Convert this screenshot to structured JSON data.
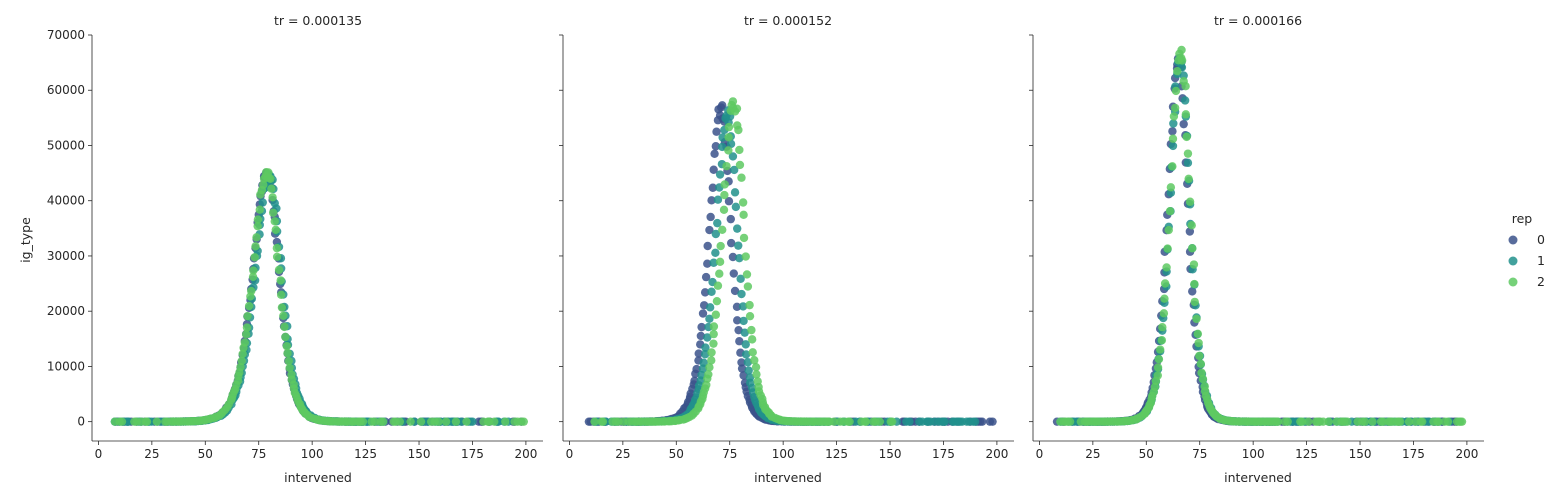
{
  "chart_data": {
    "type": "scatter",
    "xlabel": "intervened",
    "ylabel": "ig_type",
    "xlim": [
      -3,
      208
    ],
    "ylim": [
      -3500,
      70000
    ],
    "xticks": [
      0,
      25,
      50,
      75,
      100,
      125,
      150,
      175,
      200
    ],
    "yticks": [
      0,
      10000,
      20000,
      30000,
      40000,
      50000,
      60000,
      70000
    ],
    "grid": false,
    "legend": {
      "title": "rep",
      "placement": "right",
      "entries": [
        {
          "label": "0",
          "color": "#3b528b"
        },
        {
          "label": "1",
          "color": "#21918c"
        },
        {
          "label": "2",
          "color": "#5ec962"
        }
      ]
    },
    "panels": [
      {
        "title": "tr = 0.000135",
        "series": [
          {
            "name": "0",
            "color": "#3b528b",
            "peak_x": 79,
            "peak_y": 45000,
            "width_left": 9,
            "width_right": 7.5,
            "x_min": 8,
            "x_max": 198
          },
          {
            "name": "1",
            "color": "#21918c",
            "peak_x": 80,
            "peak_y": 44800,
            "width_left": 9,
            "width_right": 7.5,
            "x_min": 8,
            "x_max": 195
          },
          {
            "name": "2",
            "color": "#5ec962",
            "peak_x": 79,
            "peak_y": 45000,
            "width_left": 9,
            "width_right": 7.5,
            "x_min": 8,
            "x_max": 199
          }
        ]
      },
      {
        "title": "tr = 0.000152",
        "series": [
          {
            "name": "0",
            "color": "#3b528b",
            "peak_x": 71,
            "peak_y": 56500,
            "width_left": 7.5,
            "width_right": 6.5,
            "x_min": 8,
            "x_max": 198
          },
          {
            "name": "1",
            "color": "#21918c",
            "peak_x": 74,
            "peak_y": 55500,
            "width_left": 7.5,
            "width_right": 6.5,
            "x_min": 10,
            "x_max": 197
          },
          {
            "name": "2",
            "color": "#5ec962",
            "peak_x": 77,
            "peak_y": 57500,
            "width_left": 7.5,
            "width_right": 6.5,
            "x_min": 12,
            "x_max": 152
          }
        ]
      },
      {
        "title": "tr = 0.000166",
        "series": [
          {
            "name": "0",
            "color": "#3b528b",
            "peak_x": 65,
            "peak_y": 65000,
            "width_left": 6.5,
            "width_right": 6,
            "x_min": 8,
            "x_max": 196
          },
          {
            "name": "1",
            "color": "#21918c",
            "peak_x": 66,
            "peak_y": 66000,
            "width_left": 6.5,
            "width_right": 6,
            "x_min": 10,
            "x_max": 194
          },
          {
            "name": "2",
            "color": "#5ec962",
            "peak_x": 66,
            "peak_y": 66700,
            "width_left": 6.5,
            "width_right": 6,
            "x_min": 10,
            "x_max": 198
          }
        ]
      }
    ]
  }
}
